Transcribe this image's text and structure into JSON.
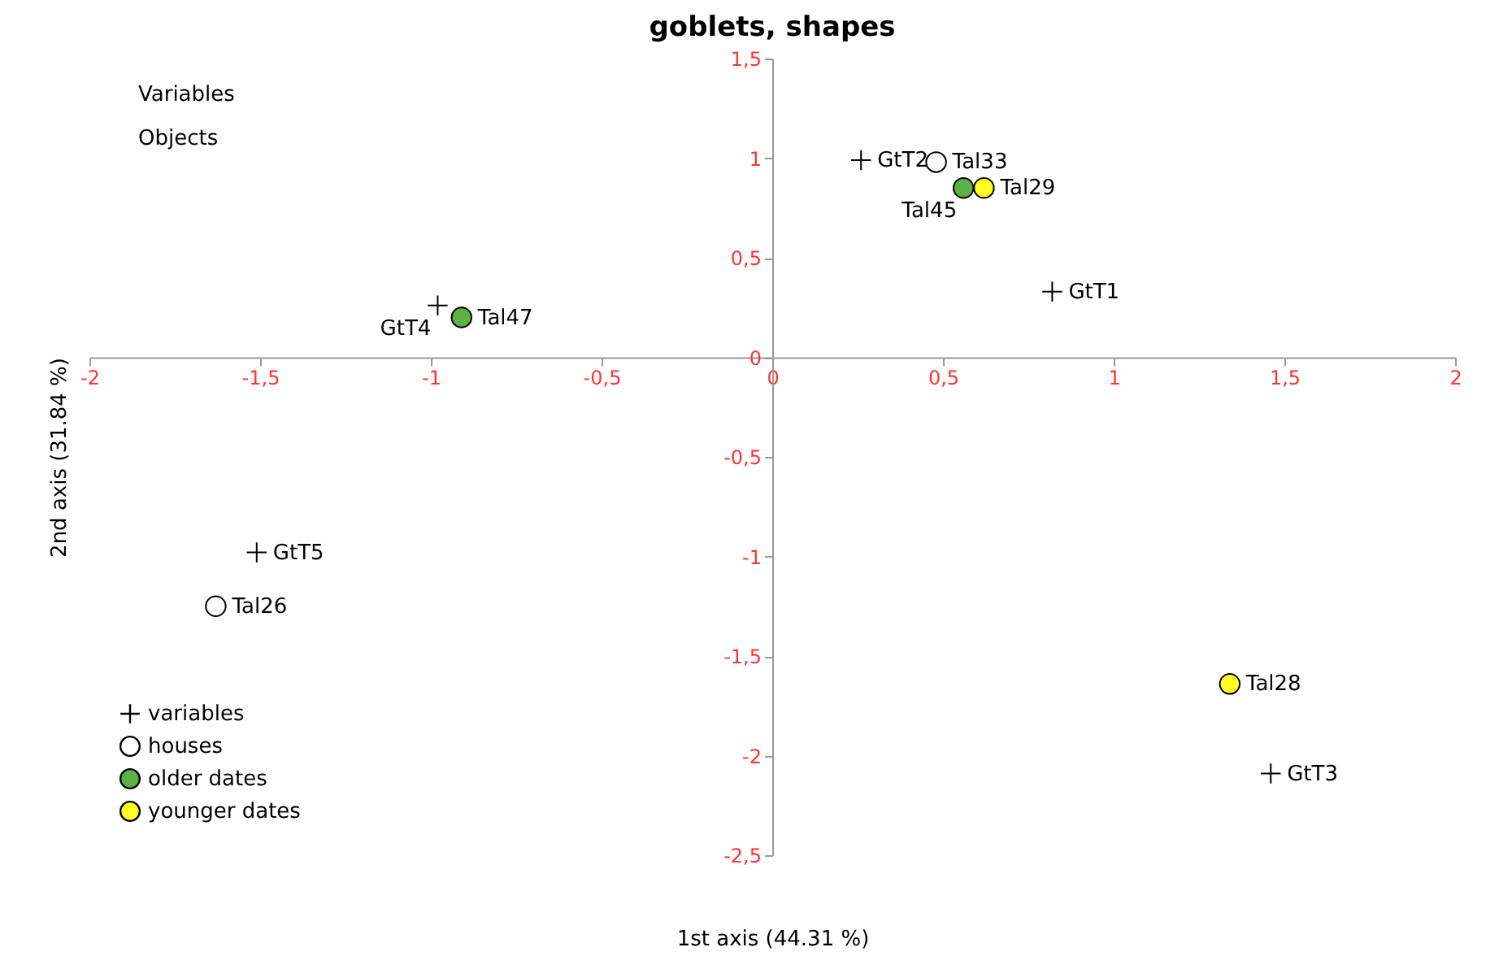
{
  "chart_data": {
    "type": "scatter",
    "title": "goblets, shapes",
    "xlabel": "1st axis (44.31 %)",
    "ylabel": "2nd axis (31.84 %)",
    "xlim": [
      -2,
      2
    ],
    "ylim": [
      -2.5,
      1.5
    ],
    "xticks": [
      -2,
      {
        "value": -1.5,
        "label": "-1,5"
      },
      -1,
      {
        "value": -0.5,
        "label": "-0,5"
      },
      0,
      {
        "value": 0.5,
        "label": "0,5"
      },
      1,
      {
        "value": 1.5,
        "label": "1,5"
      },
      2
    ],
    "yticks": [
      {
        "value": -2.5,
        "label": "-2,5"
      },
      -2,
      {
        "value": -1.5,
        "label": "-1,5"
      },
      -1,
      {
        "value": -0.5,
        "label": "-0,5"
      },
      0,
      {
        "value": 0.5,
        "label": "0,5"
      },
      1,
      {
        "value": 1.5,
        "label": "1,5"
      }
    ],
    "grid": false,
    "legend": "bottom left",
    "annotations": [
      "Variables",
      "Objects"
    ],
    "series": [
      {
        "name": "variables",
        "color": "#000000",
        "marker": "cross",
        "x": [
          0.26,
          0.82,
          1.46,
          -0.98,
          -1.51
        ],
        "values": [
          0.99,
          0.33,
          -2.09,
          0.26,
          -0.98
        ],
        "value_labels": [
          "GtT2",
          "GtT1",
          "GtT3",
          "GtT4",
          "GtT5"
        ]
      },
      {
        "name": "houses",
        "color": "#ffffff",
        "marker": "circle",
        "x": [
          0.48,
          -1.63
        ],
        "values": [
          0.98,
          -1.25
        ],
        "value_labels": [
          "Tal33",
          "Tal26"
        ]
      },
      {
        "name": "older dates",
        "color": "#5cb046",
        "marker": "circle",
        "x": [
          0.56,
          -0.91
        ],
        "values": [
          0.85,
          0.2
        ],
        "value_labels": [
          "Tal45",
          "Tal47"
        ]
      },
      {
        "name": "younger dates",
        "color": "#ffff22",
        "marker": "circle",
        "x": [
          0.62,
          1.34
        ],
        "values": [
          0.85,
          -1.64
        ],
        "value_labels": [
          "Tal29",
          "Tal28"
        ]
      }
    ]
  }
}
